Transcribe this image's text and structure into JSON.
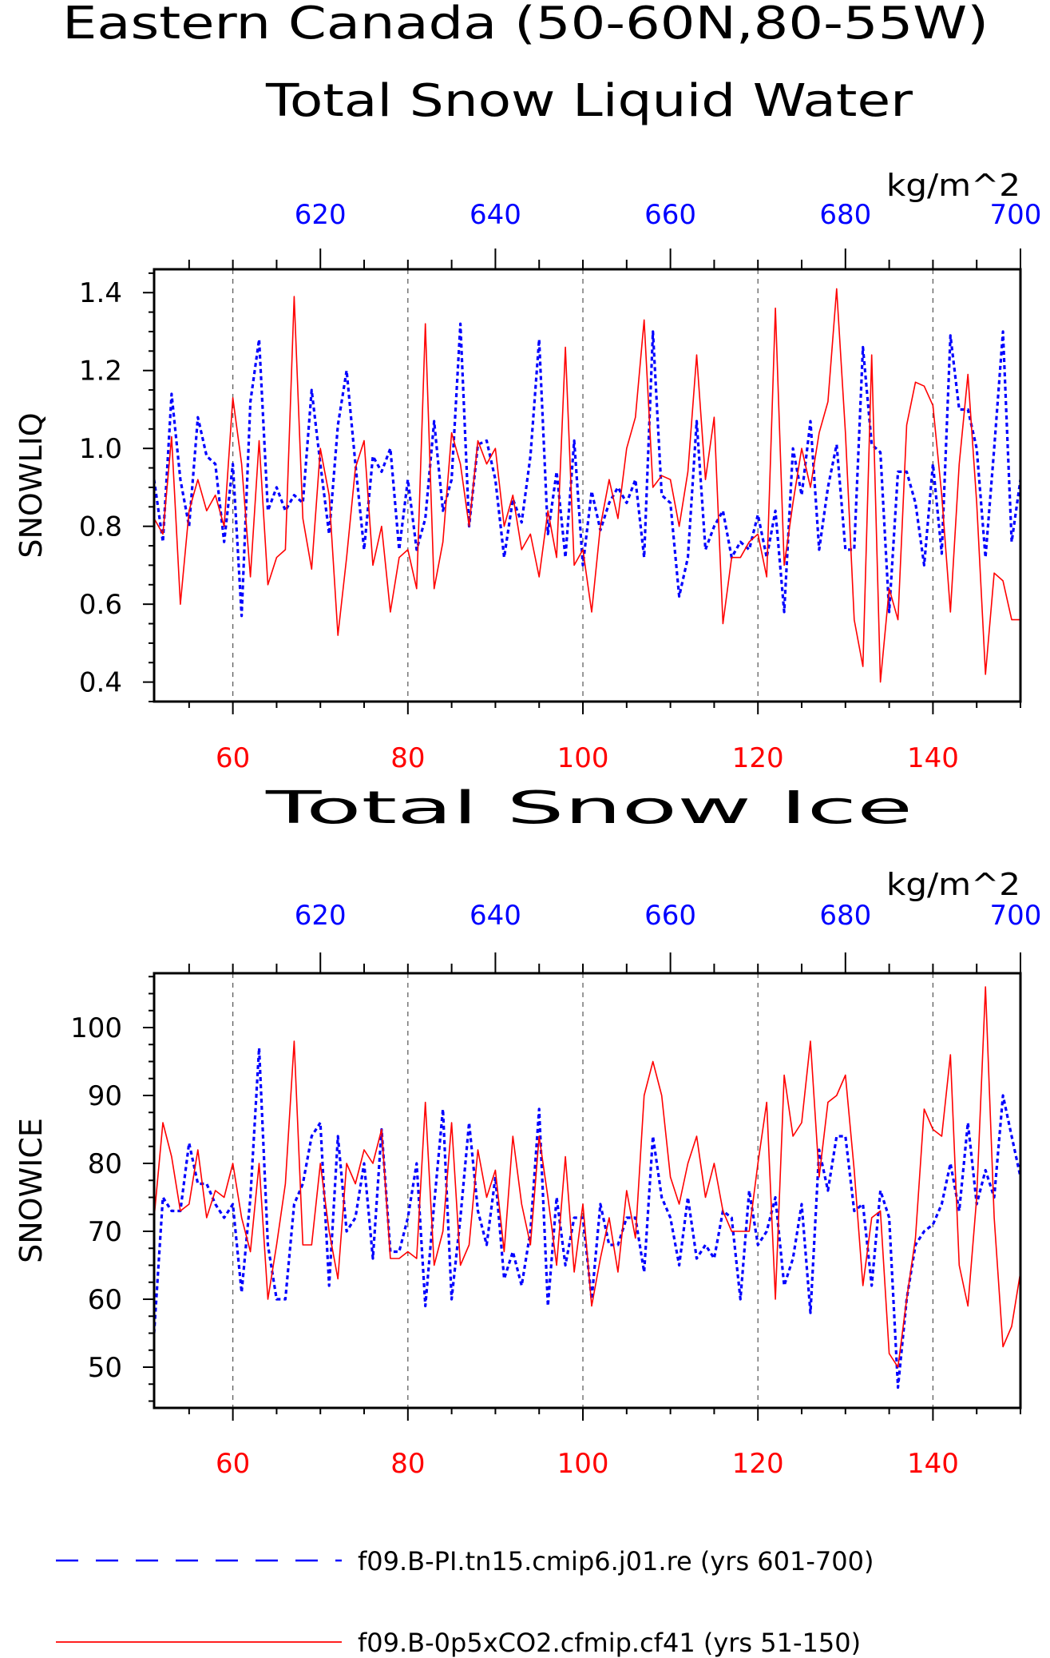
{
  "colors": {
    "blue": "#0000ff",
    "red": "#ff0000",
    "frame": "#000000",
    "grid": "#555555"
  },
  "title": {
    "line1": "Eastern Canada (50-60N,80-55W)"
  },
  "legend": [
    {
      "label": "f09.B-PI.tn15.cmip6.j01.re (yrs 601-700)",
      "color": "#0000ff",
      "style": "dashed"
    },
    {
      "label": "f09.B-0p5xCO2.cfmip.cf41 (yrs 51-150)",
      "color": "#ff0000",
      "style": "solid"
    }
  ],
  "chart_data": [
    {
      "type": "line",
      "title": "Total Snow Liquid Water",
      "ylabel": "SNOWLIQ",
      "units": "kg/m^2",
      "ylim": [
        0.35,
        1.46
      ],
      "yticks": [
        "0.4",
        "0.6",
        "0.8",
        "1.0",
        "1.2",
        "1.4"
      ],
      "ytick_values": [
        0.4,
        0.6,
        0.8,
        1.0,
        1.2,
        1.4
      ],
      "grid": "vertical dashed at major bottom ticks",
      "bottom_axis": {
        "range": [
          51,
          150
        ],
        "ticks": [
          60,
          80,
          100,
          120,
          140
        ],
        "tick_labels": [
          "60",
          "80",
          "100",
          "120",
          "140"
        ],
        "color": "#ff0000"
      },
      "top_axis": {
        "range": [
          601,
          700
        ],
        "ticks": [
          620,
          640,
          660,
          680,
          700
        ],
        "tick_labels": [
          "620",
          "640",
          "660",
          "680",
          "700"
        ],
        "color": "#0000ff"
      },
      "series": [
        {
          "name": "f09.B-PI.tn15.cmip6.j01.re (yrs 601-700)",
          "color": "#0000ff",
          "style": "dashed",
          "axis": "top",
          "x_start": 601,
          "values": [
            0.92,
            0.76,
            1.14,
            0.92,
            0.8,
            1.08,
            0.98,
            0.96,
            0.76,
            0.96,
            0.57,
            1.12,
            1.28,
            0.84,
            0.9,
            0.84,
            0.88,
            0.86,
            1.15,
            0.96,
            0.78,
            1.06,
            1.2,
            0.96,
            0.74,
            0.98,
            0.94,
            1.0,
            0.74,
            0.92,
            0.74,
            0.82,
            1.07,
            0.84,
            0.92,
            1.32,
            0.8,
            1.01,
            1.02,
            0.92,
            0.72,
            0.87,
            0.81,
            0.98,
            1.28,
            0.78,
            0.94,
            0.72,
            1.02,
            0.7,
            0.89,
            0.79,
            0.86,
            0.9,
            0.86,
            0.92,
            0.72,
            1.3,
            0.88,
            0.86,
            0.62,
            0.72,
            1.07,
            0.74,
            0.8,
            0.84,
            0.72,
            0.76,
            0.74,
            0.83,
            0.72,
            0.84,
            0.58,
            1.0,
            0.88,
            1.07,
            0.74,
            0.9,
            1.01,
            0.74,
            0.74,
            1.26,
            1.01,
            0.99,
            0.58,
            0.94,
            0.94,
            0.86,
            0.7,
            0.96,
            0.73,
            1.29,
            1.1,
            1.1,
            1.0,
            0.72,
            1.0,
            1.3,
            0.76,
            0.92
          ]
        },
        {
          "name": "f09.B-0p5xCO2.cfmip.cf41 (yrs 51-150)",
          "color": "#ff0000",
          "style": "solid",
          "axis": "bottom",
          "x_start": 51,
          "values": [
            0.82,
            0.78,
            1.03,
            0.6,
            0.84,
            0.92,
            0.84,
            0.88,
            0.8,
            1.13,
            0.96,
            0.67,
            1.02,
            0.65,
            0.72,
            0.74,
            1.39,
            0.82,
            0.69,
            1.0,
            0.88,
            0.52,
            0.72,
            0.95,
            1.02,
            0.7,
            0.8,
            0.58,
            0.72,
            0.74,
            0.64,
            1.32,
            0.64,
            0.76,
            1.04,
            0.96,
            0.8,
            1.02,
            0.96,
            1.0,
            0.8,
            0.88,
            0.74,
            0.78,
            0.67,
            0.84,
            0.72,
            1.26,
            0.7,
            0.74,
            0.58,
            0.8,
            0.92,
            0.82,
            1.0,
            1.08,
            1.33,
            0.9,
            0.93,
            0.92,
            0.8,
            0.94,
            1.24,
            0.92,
            1.08,
            0.55,
            0.72,
            0.72,
            0.76,
            0.78,
            0.67,
            1.36,
            0.7,
            0.86,
            1.0,
            0.9,
            1.04,
            1.12,
            1.41,
            1.04,
            0.56,
            0.44,
            1.24,
            0.4,
            0.64,
            0.56,
            1.06,
            1.17,
            1.16,
            1.11,
            0.88,
            0.58,
            0.96,
            1.19,
            0.86,
            0.42,
            0.68,
            0.66,
            0.56,
            0.56
          ]
        }
      ]
    },
    {
      "type": "line",
      "title": "Total Snow Ice",
      "ylabel": "SNOWICE",
      "units": "kg/m^2",
      "ylim": [
        44,
        108
      ],
      "yticks": [
        "50",
        "60",
        "70",
        "80",
        "90",
        "100"
      ],
      "ytick_values": [
        50,
        60,
        70,
        80,
        90,
        100
      ],
      "grid": "vertical dashed at major bottom ticks",
      "bottom_axis": {
        "range": [
          51,
          150
        ],
        "ticks": [
          60,
          80,
          100,
          120,
          140
        ],
        "tick_labels": [
          "60",
          "80",
          "100",
          "120",
          "140"
        ],
        "color": "#ff0000"
      },
      "top_axis": {
        "range": [
          601,
          700
        ],
        "ticks": [
          620,
          640,
          660,
          680,
          700
        ],
        "tick_labels": [
          "620",
          "640",
          "660",
          "680",
          "700"
        ],
        "color": "#0000ff"
      },
      "series": [
        {
          "name": "f09.B-PI.tn15.cmip6.j01.re (yrs 601-700)",
          "color": "#0000ff",
          "style": "dashed",
          "axis": "top",
          "x_start": 601,
          "values": [
            55,
            75,
            73,
            73,
            83,
            77,
            77,
            74,
            72,
            74,
            61,
            75,
            97,
            68,
            60,
            60,
            74,
            77,
            84,
            86,
            62,
            84,
            70,
            72,
            80,
            66,
            85,
            67,
            67,
            72,
            80,
            59,
            74,
            88,
            60,
            72,
            86,
            73,
            68,
            78,
            63,
            67,
            62,
            70,
            88,
            59,
            75,
            65,
            72,
            72,
            60,
            74,
            68,
            68,
            72,
            72,
            64,
            84,
            75,
            72,
            65,
            75,
            66,
            68,
            66,
            73,
            72,
            60,
            76,
            68,
            70,
            75,
            62,
            66,
            74,
            58,
            82,
            76,
            84,
            84,
            73,
            74,
            62,
            76,
            72,
            47,
            60,
            68,
            70,
            71,
            74,
            80,
            73,
            86,
            74,
            79,
            75,
            90,
            84,
            78
          ]
        },
        {
          "name": "f09.B-0p5xCO2.cfmip.cf41 (yrs 51-150)",
          "color": "#ff0000",
          "style": "solid",
          "axis": "bottom",
          "x_start": 51,
          "values": [
            72,
            86,
            81,
            73,
            74,
            82,
            72,
            76,
            75,
            80,
            72,
            67,
            80,
            60,
            68,
            77,
            98,
            68,
            68,
            80,
            70,
            63,
            80,
            77,
            82,
            80,
            85,
            66,
            66,
            67,
            66,
            89,
            65,
            70,
            86,
            65,
            68,
            82,
            75,
            79,
            67,
            84,
            74,
            68,
            84,
            75,
            65,
            81,
            64,
            74,
            59,
            66,
            72,
            64,
            76,
            69,
            90,
            95,
            90,
            78,
            74,
            80,
            84,
            75,
            80,
            73,
            70,
            70,
            70,
            80,
            89,
            60,
            93,
            84,
            86,
            98,
            78,
            89,
            90,
            93,
            79,
            62,
            72,
            73,
            52,
            50,
            60,
            69,
            88,
            85,
            84,
            96,
            65,
            59,
            75,
            106,
            72,
            53,
            56,
            64
          ]
        }
      ]
    }
  ]
}
